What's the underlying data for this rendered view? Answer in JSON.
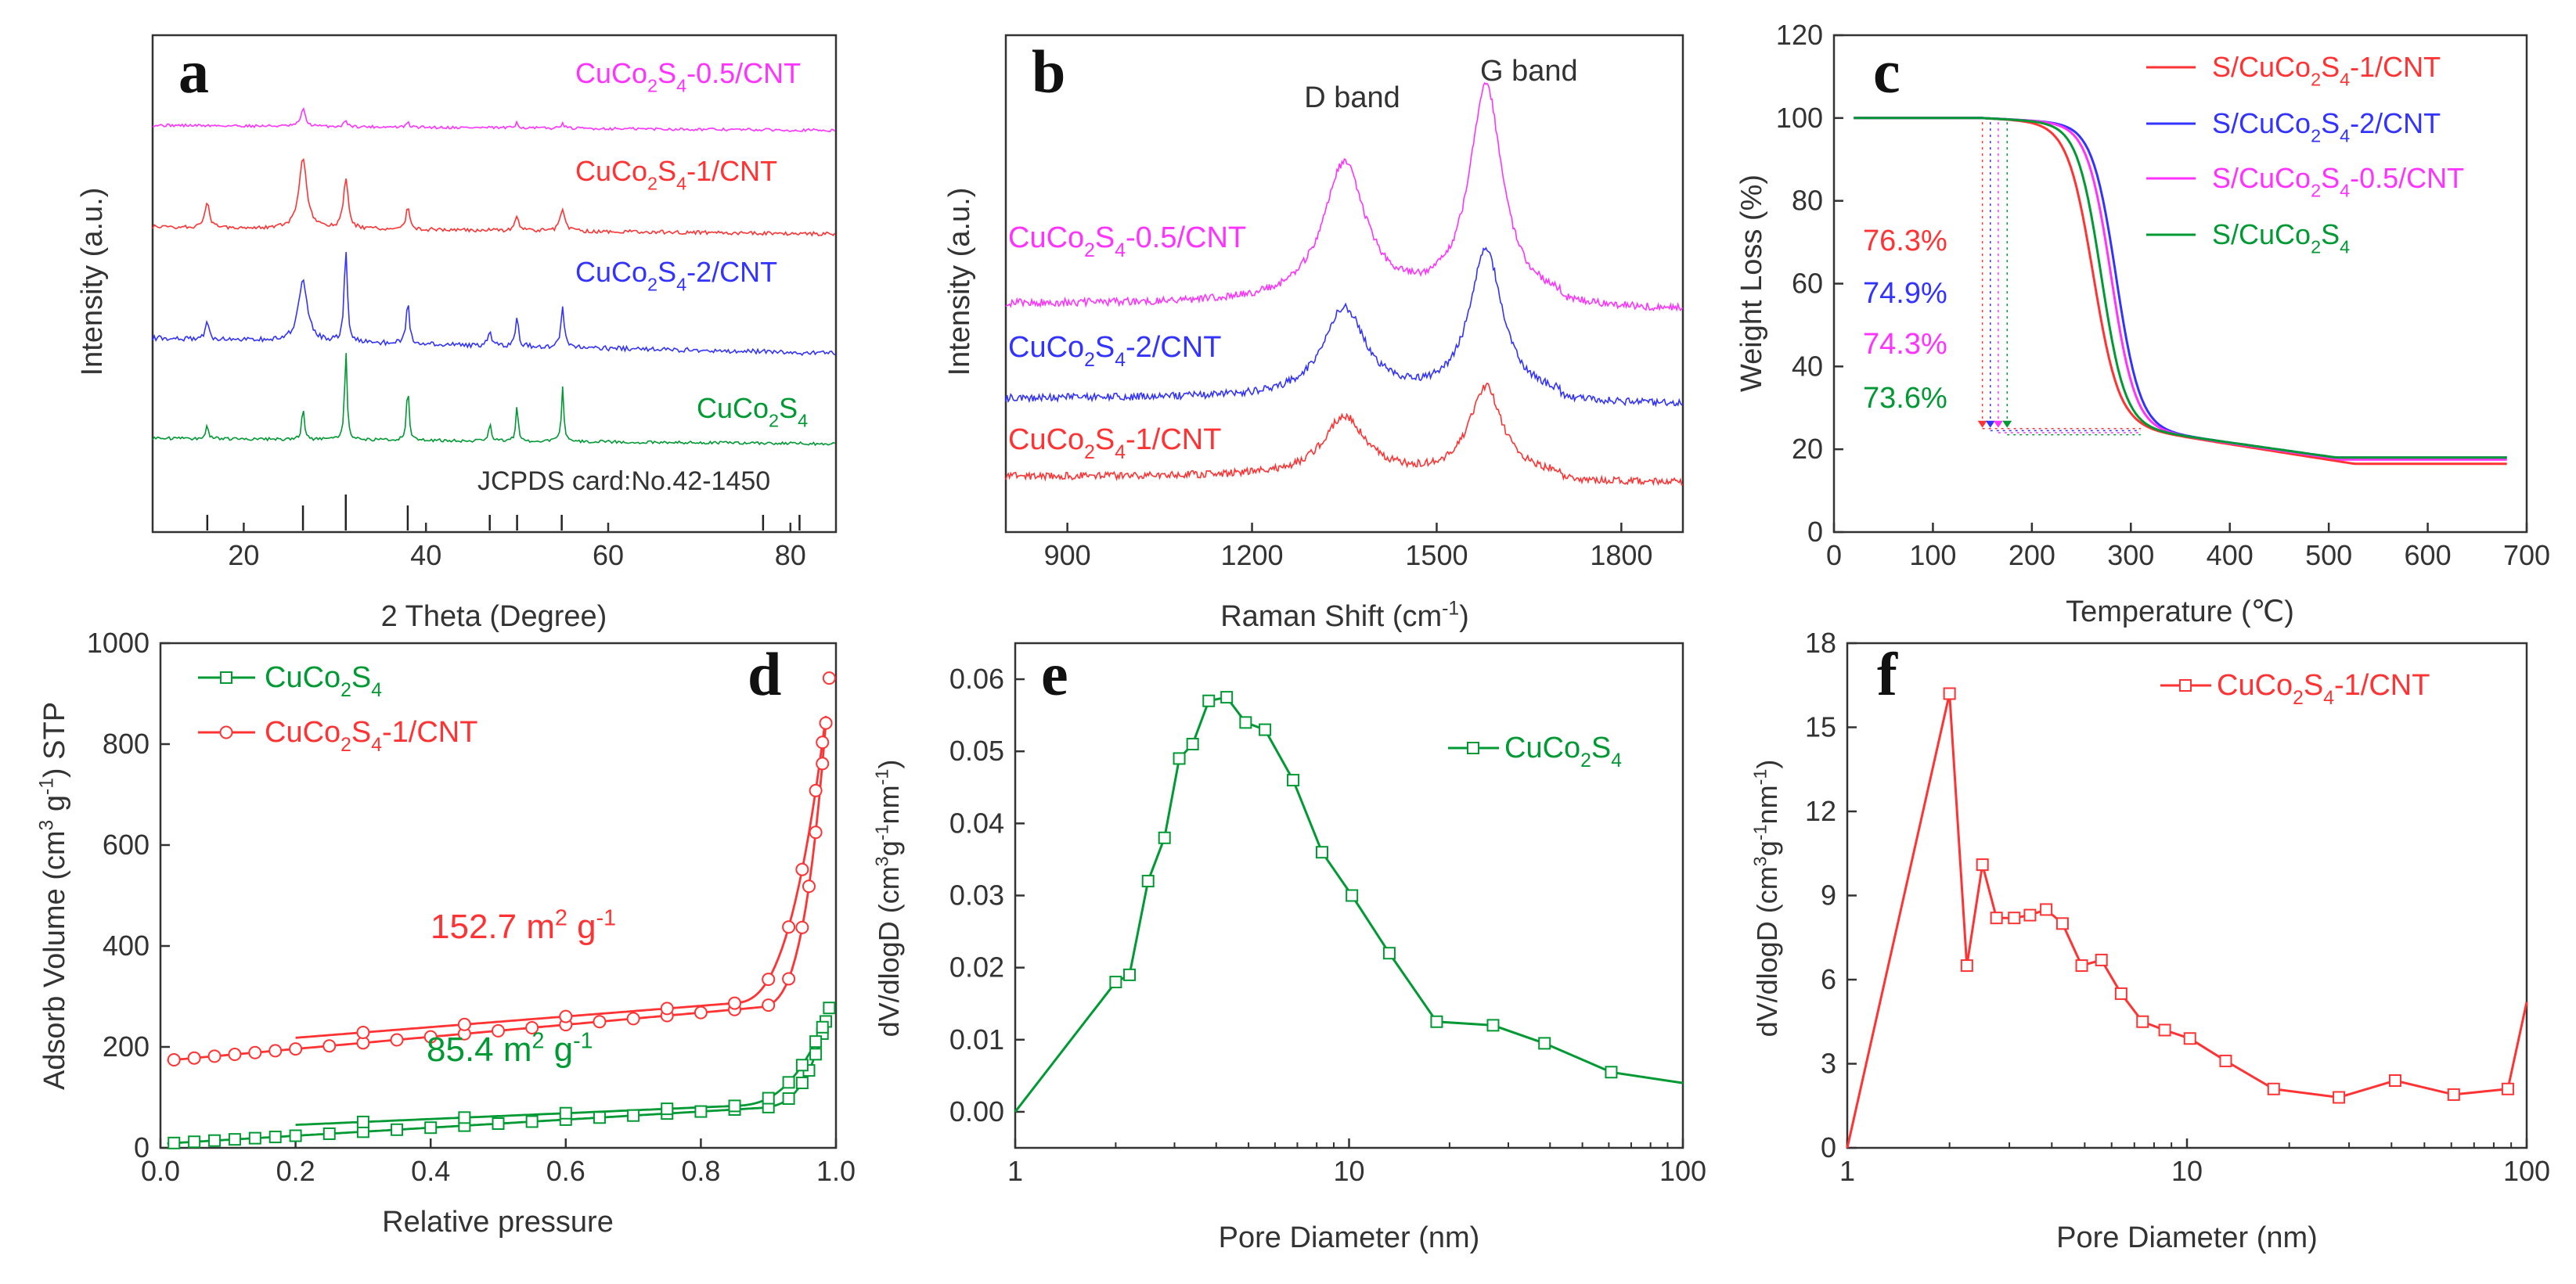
{
  "chart_data": [
    {
      "id": "a",
      "type": "line",
      "panel_label": "a",
      "xlabel": "2 Theta (Degree)",
      "ylabel": "Intensity (a.u.)",
      "xlim": [
        10,
        85
      ],
      "xticks": [
        20,
        40,
        60,
        80
      ],
      "reference_label": "JCPDS card:No.42-1450",
      "reference_peaks": [
        16.0,
        26.5,
        31.2,
        38.0,
        47.0,
        50.0,
        54.9,
        77.0,
        81.0
      ],
      "series": [
        {
          "name": "CuCo2S4-0.5/CNT",
          "label": {
            "base": "CuCo",
            "sub1": "2",
            "mid": "S",
            "sub2": "4",
            "tail": "-0.5/CNT"
          },
          "color": "#ff33ff",
          "offset": 3,
          "peaks": [
            [
              26.5,
              0.3,
              1.0
            ],
            [
              31.2,
              0.2,
              0.4
            ],
            [
              38,
              0.15,
              0.3
            ],
            [
              50,
              0.15,
              0.4
            ],
            [
              55,
              0.15,
              0.4
            ]
          ]
        },
        {
          "name": "CuCo2S4-1/CNT",
          "label": {
            "base": "CuCo",
            "sub1": "2",
            "mid": "S",
            "sub2": "4",
            "tail": "-1/CNT"
          },
          "color": "#ff3333",
          "offset": 2,
          "peaks": [
            [
              16,
              0.3,
              1.0
            ],
            [
              26.5,
              0.5,
              3.0
            ],
            [
              31.2,
              0.3,
              2.2
            ],
            [
              38,
              0.25,
              0.9
            ],
            [
              50,
              0.25,
              0.6
            ],
            [
              55,
              0.3,
              1.0
            ]
          ]
        },
        {
          "name": "CuCo2S4-2/CNT",
          "label": {
            "base": "CuCo",
            "sub1": "2",
            "mid": "S",
            "sub2": "4",
            "tail": "-2/CNT"
          },
          "color": "#3333ff",
          "offset": 1,
          "peaks": [
            [
              16,
              0.2,
              1.2
            ],
            [
              26.5,
              0.6,
              3.5
            ],
            [
              31.2,
              0.2,
              5.5
            ],
            [
              38,
              0.2,
              2.5
            ],
            [
              47,
              0.2,
              1.0
            ],
            [
              50,
              0.2,
              1.6
            ],
            [
              55,
              0.2,
              2.5
            ]
          ]
        },
        {
          "name": "CuCo2S4",
          "label": {
            "base": "CuCo",
            "sub1": "2",
            "mid": "S",
            "sub2": "4",
            "tail": ""
          },
          "color": "#009933",
          "offset": 0,
          "peaks": [
            [
              16,
              0.15,
              0.8
            ],
            [
              26.5,
              0.15,
              1.8
            ],
            [
              31.2,
              0.15,
              5.0
            ],
            [
              38,
              0.15,
              3.0
            ],
            [
              47,
              0.15,
              1.0
            ],
            [
              50,
              0.15,
              2.0
            ],
            [
              55,
              0.15,
              3.0
            ]
          ]
        }
      ]
    },
    {
      "id": "b",
      "type": "line",
      "panel_label": "b",
      "xlabel": "Raman Shift (cm-1)",
      "xlabel_parts": {
        "base": "Raman Shift (cm",
        "sup": "-1",
        "tail": ")"
      },
      "ylabel": "Intensity (a.u.)",
      "xlim": [
        800,
        1900
      ],
      "xticks": [
        900,
        1200,
        1500,
        1800
      ],
      "band_labels": [
        {
          "text": "D band",
          "x": 1350
        },
        {
          "text": "G band",
          "x": 1580
        }
      ],
      "series": [
        {
          "name": "CuCo2S4-0.5/CNT",
          "label": {
            "base": "CuCo",
            "sub1": "2",
            "mid": "S",
            "sub2": "4",
            "tail": "-0.5/CNT"
          },
          "color": "#ff33ff",
          "baseline": 2.3,
          "D": 2.8,
          "G": 4.4
        },
        {
          "name": "CuCo2S4-2/CNT",
          "label": {
            "base": "CuCo",
            "sub1": "2",
            "mid": "S",
            "sub2": "4",
            "tail": "-2/CNT"
          },
          "color": "#3333ff",
          "baseline": 1.15,
          "D": 1.8,
          "G": 3.0
        },
        {
          "name": "CuCo2S4-1/CNT",
          "label": {
            "base": "CuCo",
            "sub1": "2",
            "mid": "S",
            "sub2": "4",
            "tail": "-1/CNT"
          },
          "color": "#ff3333",
          "baseline": 0.2,
          "D": 1.2,
          "G": 1.8
        }
      ]
    },
    {
      "id": "c",
      "type": "line",
      "panel_label": "c",
      "xlabel": "Temperature (℃)",
      "ylabel": "Weight Loss (%)",
      "xlim": [
        0,
        700
      ],
      "ylim": [
        0,
        120
      ],
      "xticks": [
        0,
        100,
        200,
        300,
        400,
        500,
        600,
        700
      ],
      "yticks": [
        0,
        20,
        40,
        60,
        80,
        100,
        120
      ],
      "series": [
        {
          "name": "S/CuCo2S4-1/CNT",
          "label": {
            "pre": "S/CuCo",
            "sub1": "2",
            "mid": "S",
            "sub2": "4",
            "tail": "-1/CNT"
          },
          "color": "#ff3333",
          "mid_temp": 262,
          "width": 13,
          "end_weight": 17.5,
          "sulfur_content": "76.3%"
        },
        {
          "name": "S/CuCo2S4-2/CNT",
          "label": {
            "pre": "S/CuCo",
            "sub1": "2",
            "mid": "S",
            "sub2": "4",
            "tail": "-2/CNT"
          },
          "color": "#3333ff",
          "mid_temp": 285,
          "width": 12,
          "end_weight": 19,
          "sulfur_content": "74.9%"
        },
        {
          "name": "S/CuCo2S4-0.5/CNT",
          "label": {
            "pre": "S/CuCo",
            "sub1": "2",
            "mid": "S",
            "sub2": "4",
            "tail": "-0.5/CNT"
          },
          "color": "#ff33ff",
          "mid_temp": 280,
          "width": 12,
          "end_weight": 18.5,
          "sulfur_content": "74.3%"
        },
        {
          "name": "S/CuCo2S4",
          "label": {
            "pre": "S/CuCo",
            "sub1": "2",
            "mid": "S",
            "sub2": "4",
            "tail": ""
          },
          "color": "#009933",
          "mid_temp": 270,
          "width": 12,
          "end_weight": 19,
          "sulfur_content": "73.6%"
        }
      ]
    },
    {
      "id": "d",
      "type": "line",
      "panel_label": "d",
      "xlabel": "Relative pressure",
      "ylabel_parts": {
        "a": "Adsorb Volume (cm",
        "s1": "3",
        "b": " g",
        "s2": "-1",
        "c": ") STP"
      },
      "xlim": [
        0.0,
        1.0
      ],
      "ylim": [
        0,
        1000
      ],
      "xticks": [
        "0.0",
        "0.2",
        "0.4",
        "0.6",
        "0.8",
        "1.0"
      ],
      "yticks": [
        0,
        200,
        400,
        600,
        800,
        1000
      ],
      "series": [
        {
          "name": "CuCo2S4",
          "label": {
            "base": "CuCo",
            "sub1": "2",
            "mid": "S",
            "sub2": "4",
            "tail": ""
          },
          "color": "#009933",
          "marker": "square",
          "start": 8,
          "linear_end": 80,
          "a_end": 270,
          "d_start": 28,
          "surface_area": {
            "value": "85.4 m",
            "sup": "2",
            "tail": " g",
            "sup2": "-1"
          }
        },
        {
          "name": "CuCo2S4-1/CNT",
          "label": {
            "base": "CuCo",
            "sub1": "2",
            "mid": "S",
            "sub2": "4",
            "tail": "-1/CNT"
          },
          "color": "#ff3333",
          "marker": "circle",
          "start": 172,
          "linear_end": 280,
          "a_end": 920,
          "d_start": 185,
          "surface_area": {
            "value": "152.7 m",
            "sup": "2",
            "tail": " g",
            "sup2": "-1"
          }
        }
      ]
    },
    {
      "id": "e",
      "type": "line",
      "panel_label": "e",
      "xlabel": "Pore Diameter (nm)",
      "ylabel_parts": {
        "a": "dV/dlogD (cm",
        "s1": "3",
        "b": "g",
        "s2": "-1",
        "c": "nm",
        "s3": "-1",
        "d": ")"
      },
      "xscale": "log",
      "xlim": [
        1,
        100
      ],
      "ylim": [
        -0.005,
        0.065
      ],
      "xticks": [
        "1",
        "10",
        "100"
      ],
      "yticks": [
        "0.00",
        "0.01",
        "0.02",
        "0.03",
        "0.04",
        "0.05",
        "0.06"
      ],
      "series": [
        {
          "name": "CuCo2S4",
          "label": {
            "base": "CuCo",
            "sub1": "2",
            "mid": "S",
            "sub2": "4",
            "tail": ""
          },
          "color": "#009933",
          "marker": "square",
          "x": [
            1.0,
            2.0,
            2.2,
            2.5,
            2.8,
            3.1,
            3.4,
            3.8,
            4.3,
            4.9,
            5.6,
            6.8,
            8.3,
            10.2,
            13.2,
            18.3,
            27.0,
            38.5,
            61.0,
            100
          ],
          "y": [
            0.0,
            0.018,
            0.019,
            0.032,
            0.038,
            0.049,
            0.051,
            0.057,
            0.0575,
            0.054,
            0.053,
            0.046,
            0.036,
            0.03,
            0.022,
            0.0125,
            0.012,
            0.0095,
            0.0055,
            0.004
          ]
        }
      ]
    },
    {
      "id": "f",
      "type": "line",
      "panel_label": "f",
      "xlabel": "Pore Diameter (nm)",
      "ylabel_parts": {
        "a": "dV/dlogD (cm",
        "s1": "3",
        "b": "g",
        "s2": "-1",
        "c": "nm",
        "s3": "-1",
        "d": ")"
      },
      "xscale": "log",
      "xlim": [
        1,
        100
      ],
      "ylim": [
        0,
        18
      ],
      "xticks": [
        "1",
        "10",
        "100"
      ],
      "yticks": [
        "0",
        "3",
        "6",
        "9",
        "12",
        "15",
        "18"
      ],
      "series": [
        {
          "name": "CuCo2S4-1/CNT",
          "label": {
            "base": "CuCo",
            "sub1": "2",
            "mid": "S",
            "sub2": "4",
            "tail": "-1/CNT"
          },
          "color": "#ff3333",
          "marker": "square",
          "x": [
            1.0,
            2.0,
            2.25,
            2.5,
            2.75,
            3.1,
            3.45,
            3.85,
            4.3,
            4.9,
            5.6,
            6.4,
            7.4,
            8.6,
            10.2,
            13.0,
            18.0,
            28.0,
            41.0,
            61.0,
            88.0,
            100
          ],
          "y": [
            0,
            16.2,
            6.5,
            10.1,
            8.2,
            8.2,
            8.3,
            8.5,
            8.0,
            6.5,
            6.7,
            5.5,
            4.5,
            4.2,
            3.9,
            3.1,
            2.1,
            1.8,
            2.4,
            1.9,
            2.1,
            5.2
          ]
        }
      ]
    }
  ]
}
